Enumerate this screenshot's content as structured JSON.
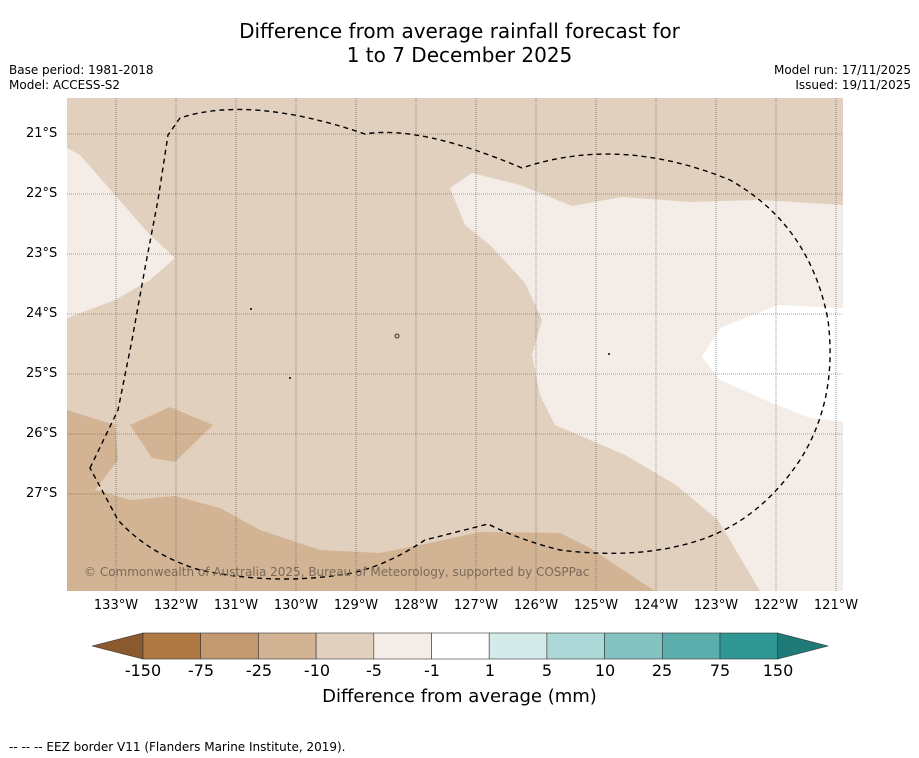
{
  "title": {
    "line1": "Difference from average rainfall forecast for",
    "line2": "1 to 7 December 2025"
  },
  "meta": {
    "base_period": "Base period: 1981-2018",
    "model": "Model: ACCESS-S2",
    "model_run": "Model run: 17/11/2025",
    "issued": "Issued: 19/11/2025"
  },
  "map": {
    "latitude_labels": [
      "21°S",
      "22°S",
      "23°S",
      "24°S",
      "25°S",
      "26°S",
      "27°S"
    ],
    "longitude_labels": [
      "133°W",
      "132°W",
      "131°W",
      "130°W",
      "129°W",
      "128°W",
      "127°W",
      "126°W",
      "125°W",
      "124°W",
      "123°W",
      "122°W",
      "121°W"
    ],
    "copyright": "© Commonwealth of Australia 2025, Bureau of Meteorology, supported by COSPPac",
    "colors": {
      "light_dry": "#e2d0be",
      "moderate_dry": "#d2b394",
      "near_avg": "#f4ede7",
      "no_change": "#ffffff"
    }
  },
  "colorbar": {
    "ticks": [
      "-150",
      "-75",
      "-25",
      "-10",
      "-5",
      "-1",
      "1",
      "5",
      "10",
      "25",
      "75",
      "150"
    ],
    "colors": [
      "#8a5a2e",
      "#ae7843",
      "#c29a72",
      "#d2b394",
      "#e2d0be",
      "#f4ede7",
      "#ffffff",
      "#d5ebea",
      "#acd8d8",
      "#82c2c0",
      "#5caeac",
      "#2e9794",
      "#1f7a78"
    ],
    "label": "Difference from average (mm)"
  },
  "footer": "--  --  -- EEZ border V11 (Flanders Marine Institute, 2019)."
}
